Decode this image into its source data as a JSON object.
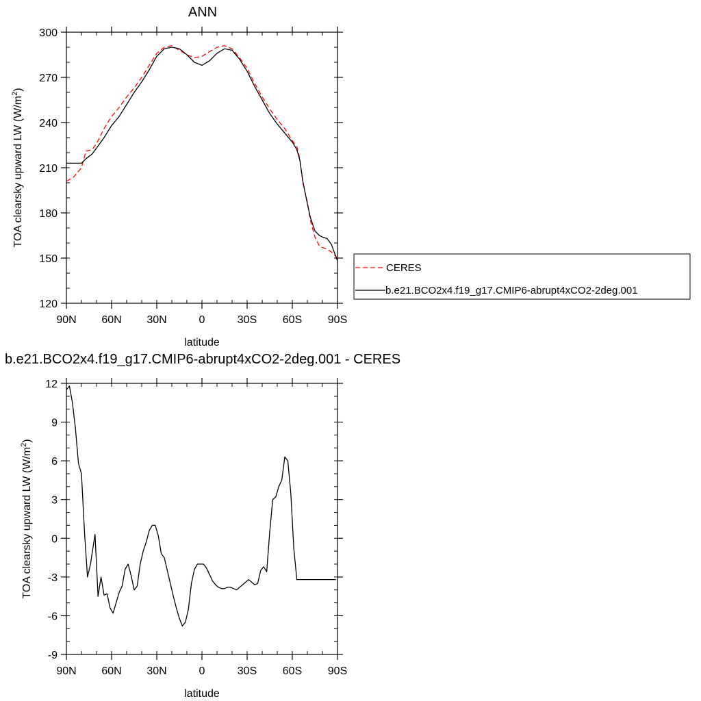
{
  "chart_data": [
    {
      "type": "line",
      "title": "ANN",
      "xlabel": "latitude",
      "ylabel": "TOA clearsky upward LW (W/m",
      "ylabel_sup": "2",
      "ylabel_tail": ")",
      "xlim": [
        90,
        -90
      ],
      "ylim": [
        120,
        300
      ],
      "yticks": [
        120,
        150,
        180,
        210,
        240,
        270,
        300
      ],
      "xticks": [
        {
          "v": 90,
          "label": "90N"
        },
        {
          "v": 60,
          "label": "60N"
        },
        {
          "v": 30,
          "label": "30N"
        },
        {
          "v": 0,
          "label": "0"
        },
        {
          "v": -30,
          "label": "30S"
        },
        {
          "v": -60,
          "label": "60S"
        },
        {
          "v": -90,
          "label": "90S"
        }
      ],
      "legend_position": "right",
      "series": [
        {
          "name": "CERES",
          "color": "#ff0000",
          "dash": "dashed",
          "x": [
            90,
            85,
            80,
            77,
            73,
            70,
            65,
            60,
            55,
            50,
            45,
            40,
            35,
            30,
            25,
            20,
            15,
            10,
            5,
            0,
            -5,
            -10,
            -15,
            -20,
            -25,
            -30,
            -35,
            -40,
            -45,
            -50,
            -55,
            -60,
            -63,
            -65,
            -67,
            -70,
            -72,
            -75,
            -78,
            -80,
            -83,
            -86,
            -90
          ],
          "y": [
            201,
            204,
            210,
            221,
            222,
            226,
            236,
            244,
            250,
            257,
            263,
            270,
            278,
            286,
            290,
            291,
            288,
            285,
            283,
            284,
            287,
            290,
            291,
            289,
            283,
            276,
            266,
            257,
            249,
            242,
            236,
            228,
            224,
            216,
            200,
            187,
            175,
            164,
            158,
            157,
            156,
            154,
            150
          ]
        },
        {
          "name": "b.e21.BCO2x4.f19_g17.CMIP6-abrupt4xCO2-2deg.001",
          "color": "#000000",
          "dash": "solid",
          "x": [
            90,
            85,
            80,
            77,
            73,
            70,
            65,
            60,
            55,
            50,
            45,
            40,
            35,
            30,
            25,
            20,
            15,
            10,
            5,
            0,
            -5,
            -10,
            -15,
            -20,
            -25,
            -30,
            -35,
            -40,
            -45,
            -50,
            -55,
            -60,
            -63,
            -65,
            -67,
            -70,
            -72,
            -75,
            -78,
            -80,
            -83,
            -86,
            -90
          ],
          "y": [
            213,
            213,
            213,
            216,
            219,
            223,
            230,
            238,
            244,
            252,
            260,
            267,
            275,
            284,
            289,
            290,
            289,
            285,
            280,
            278,
            281,
            286,
            289,
            288,
            282,
            274,
            264,
            255,
            246,
            239,
            233,
            227,
            222,
            215,
            201,
            186,
            177,
            168,
            165,
            164,
            163,
            159,
            148
          ]
        }
      ]
    },
    {
      "type": "line",
      "title": "b.e21.BCO2x4.f19_g17.CMIP6-abrupt4xCO2-2deg.001 - CERES",
      "xlabel": "latitude",
      "ylabel": "TOA clearsky upward LW (W/m",
      "ylabel_sup": "2",
      "ylabel_tail": ")",
      "xlim": [
        90,
        -90
      ],
      "ylim": [
        -9,
        12
      ],
      "yticks": [
        -9,
        -6,
        -3,
        0,
        3,
        6,
        9,
        12
      ],
      "xticks": [
        {
          "v": 90,
          "label": "90N"
        },
        {
          "v": 60,
          "label": "60N"
        },
        {
          "v": 30,
          "label": "30N"
        },
        {
          "v": 0,
          "label": "0"
        },
        {
          "v": -30,
          "label": "30S"
        },
        {
          "v": -60,
          "label": "60S"
        },
        {
          "v": -90,
          "label": "90S"
        }
      ],
      "series": [
        {
          "color": "#000000",
          "dash": "solid",
          "x": [
            90,
            88,
            86,
            84,
            82,
            80,
            78,
            76,
            74,
            71,
            69,
            67,
            65,
            63,
            61,
            59,
            57,
            55,
            53,
            51,
            49,
            47,
            45,
            43,
            41,
            39,
            37,
            35,
            33,
            31,
            29,
            27,
            25,
            23,
            21,
            19,
            17,
            15,
            13,
            11,
            9,
            7,
            5,
            3,
            1,
            -1,
            -3,
            -5,
            -7,
            -9,
            -11,
            -13,
            -15,
            -17,
            -19,
            -21,
            -23,
            -25,
            -27,
            -29,
            -31,
            -33,
            -35,
            -37,
            -39,
            -41,
            -43,
            -45,
            -47,
            -49,
            -51,
            -53,
            -55,
            -57,
            -59,
            -61,
            -63,
            -65,
            -67,
            -69,
            -71,
            -73,
            -75,
            -77,
            -79,
            -81,
            -83,
            -85,
            -87,
            -89
          ],
          "y": [
            11.5,
            11.8,
            10.5,
            8.5,
            5.8,
            5.0,
            0.5,
            -3.0,
            -2.0,
            0.3,
            -4.5,
            -3.0,
            -4.4,
            -4.3,
            -5.4,
            -5.8,
            -5.0,
            -4.2,
            -3.7,
            -2.4,
            -2.0,
            -2.9,
            -4.0,
            -3.7,
            -2.0,
            -1.0,
            -0.3,
            0.6,
            1.0,
            1.0,
            0.2,
            -1.2,
            -1.5,
            -2.5,
            -3.5,
            -4.5,
            -5.4,
            -6.2,
            -6.8,
            -6.5,
            -5.5,
            -3.5,
            -2.4,
            -2.0,
            -2.0,
            -2.0,
            -2.3,
            -2.8,
            -3.3,
            -3.6,
            -3.8,
            -3.9,
            -3.9,
            -3.8,
            -3.8,
            -3.9,
            -4.0,
            -3.8,
            -3.6,
            -3.4,
            -3.2,
            -3.4,
            -3.6,
            -3.5,
            -2.5,
            -2.2,
            -2.6,
            0.5,
            3.0,
            3.2,
            4.0,
            4.5,
            6.3,
            6.0,
            3.5,
            -0.8,
            -3.2,
            -3.2,
            -3.2,
            -3.2,
            -3.2,
            -3.2,
            -3.2,
            -3.2,
            -3.2,
            -3.2,
            -3.2,
            -3.2,
            -3.2,
            -3.2
          ]
        }
      ]
    }
  ]
}
